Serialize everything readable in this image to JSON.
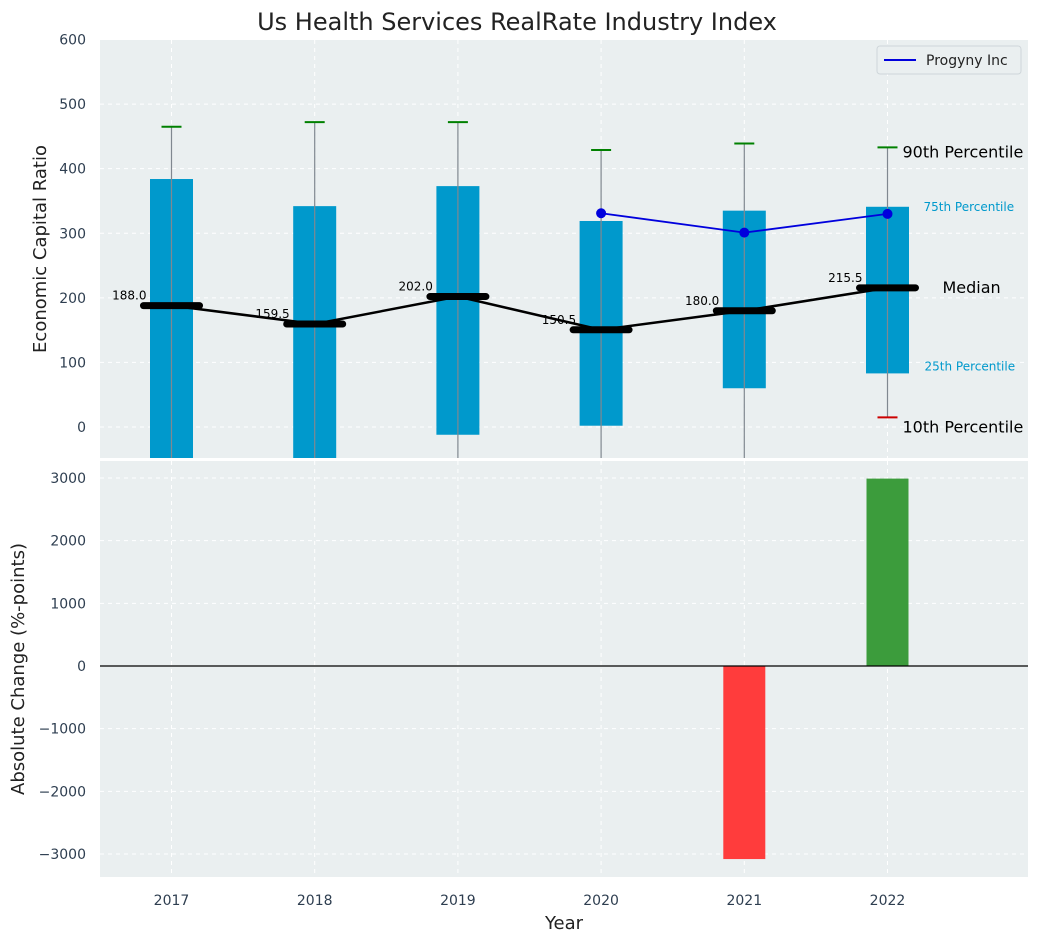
{
  "title": "Us Health Services RealRate Industry Index",
  "chart_data": [
    {
      "type": "box",
      "ylabel": "Economic Capital Ratio",
      "ylim": [
        -50,
        600
      ],
      "yticks": [
        "0",
        "100",
        "200",
        "300",
        "400",
        "500",
        "600"
      ],
      "categories": [
        "2017",
        "2018",
        "2019",
        "2020",
        "2021",
        "2022"
      ],
      "p10": [
        null,
        null,
        null,
        null,
        null,
        15
      ],
      "p25": [
        -50,
        -50,
        -12,
        2,
        60,
        83
      ],
      "median": [
        188.0,
        159.5,
        202.0,
        150.5,
        180.0,
        215.5
      ],
      "median_labels": [
        "188.0",
        "159.5",
        "202.0",
        "150.5",
        "180.0",
        "215.5"
      ],
      "p75": [
        384,
        342,
        373,
        319,
        335,
        341
      ],
      "p90": [
        465,
        472,
        472,
        429,
        439,
        433
      ],
      "series": [
        {
          "name": "Progyny Inc",
          "x": [
            "2020",
            "2021",
            "2022"
          ],
          "values": [
            331,
            301,
            330
          ],
          "color": "#0000dd"
        }
      ],
      "annotations": {
        "p90": "90th Percentile",
        "p75": "75th Percentile",
        "median": "Median",
        "p25": "25th Percentile",
        "p10": "10th Percentile"
      },
      "legend": "top-right",
      "grid": true,
      "colors": {
        "box": "#0099cc",
        "whisker_cap": "#008000",
        "p10_cap": "#cc0000",
        "median": "#000000",
        "background": "#eaeff0"
      }
    },
    {
      "type": "bar",
      "xlabel": "Year",
      "ylabel": "Absolute Change (%-points)",
      "ylim": [
        -3350,
        3350
      ],
      "yticks": [
        "−3000",
        "−2000",
        "−1000",
        "0",
        "1000",
        "2000",
        "3000"
      ],
      "categories": [
        "2017",
        "2018",
        "2019",
        "2020",
        "2021",
        "2022"
      ],
      "values": [
        null,
        null,
        null,
        null,
        -3080,
        2990
      ],
      "colors": {
        "negative": "#ff3c3c",
        "positive": "#3c9c3c"
      },
      "grid": true
    }
  ]
}
